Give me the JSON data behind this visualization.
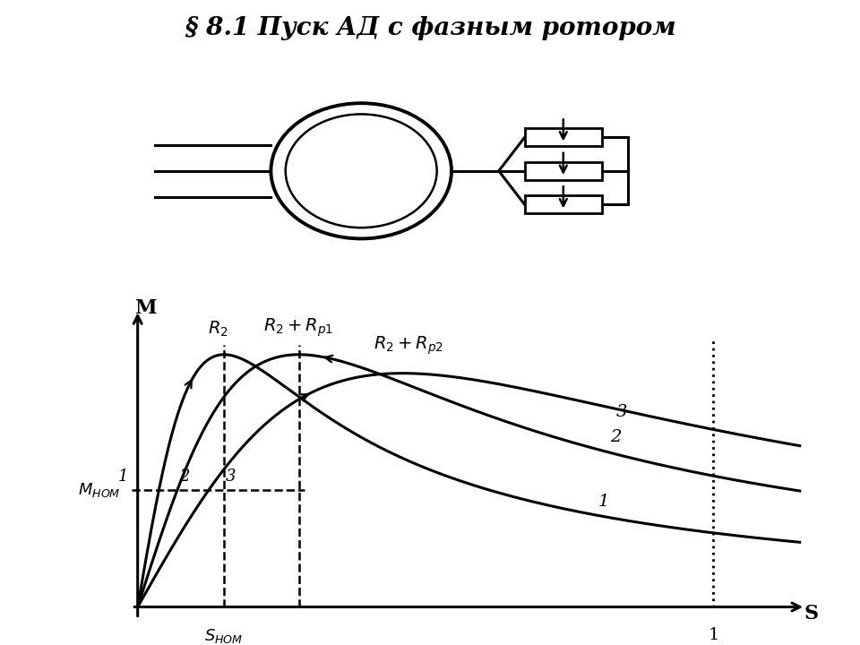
{
  "title": "§ 8.1 Пуск АД с фазным ротором",
  "title_fontsize": 20,
  "bg_color": "#ffffff",
  "lw": 2.2,
  "s_k1": 0.15,
  "s_k2": 0.28,
  "s_k3": 0.46,
  "s_nom": 0.15,
  "s_dash2": 0.28,
  "M_nom_val": 0.5,
  "scale1": 1.08,
  "scale2": 1.08,
  "scale3": 1.0,
  "curve1_label_s": 0.78,
  "curve2_label_s": 0.82,
  "curve3_label_s": 0.82
}
